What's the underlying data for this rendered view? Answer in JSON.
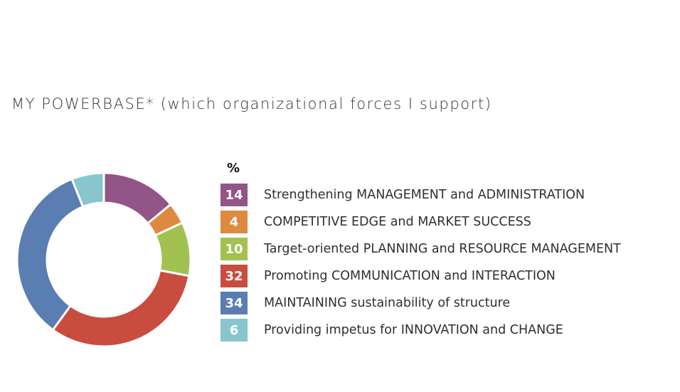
{
  "title": "MY POWERBASE* (which organizational forces I support)",
  "chart_data": {
    "type": "pie",
    "variant": "donut",
    "unit_label": "%",
    "categories": [
      "Strengthening MANAGEMENT and ADMINISTRATION",
      "COMPETITIVE EDGE and MARKET SUCCESS",
      "Target-oriented PLANNING and RESOURCE MANAGEMENT",
      "Promoting COMMUNICATION and INTERACTION",
      "MAINTAINING sustainability of structure",
      "Providing impetus for INNOVATION and CHANGE"
    ],
    "values": [
      14,
      4,
      10,
      32,
      34,
      6
    ],
    "colors": [
      "#935487",
      "#dd8a3f",
      "#a2c150",
      "#c94d3f",
      "#5a7db2",
      "#88c5cd"
    ],
    "legend": "right"
  }
}
